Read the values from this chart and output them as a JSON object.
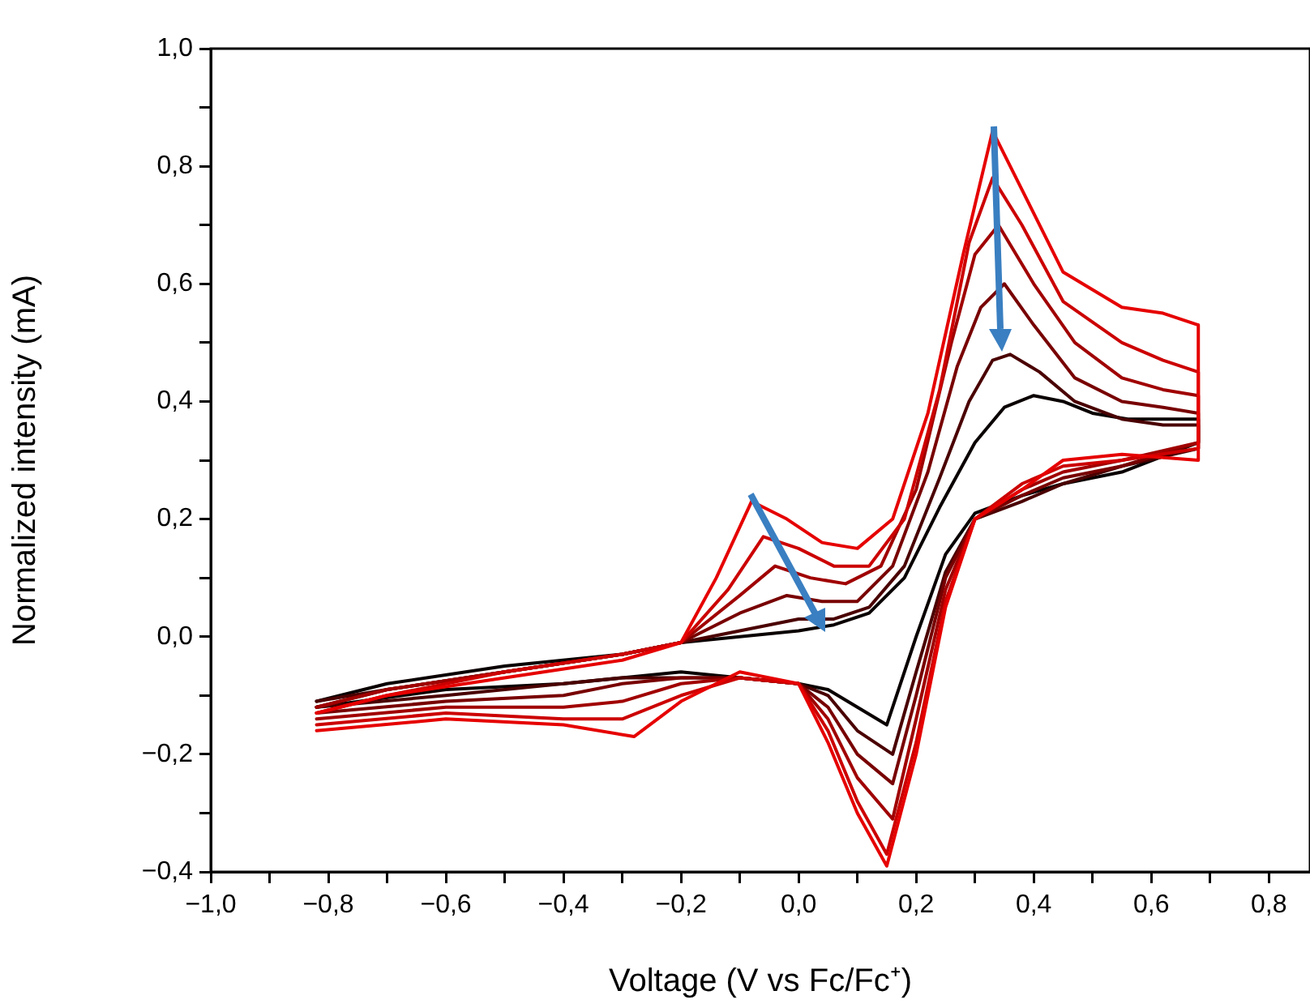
{
  "chart_data": {
    "type": "line",
    "xlabel": "Voltage (V vs Fc/Fc⁺)",
    "ylabel": "Normalized intensity (mA)",
    "xlim": [
      -1.0,
      0.87
    ],
    "ylim": [
      -0.4,
      1.0
    ],
    "xticks": [
      {
        "value": -1.0,
        "label": "−1,0"
      },
      {
        "value": -0.9,
        "label": null
      },
      {
        "value": -0.8,
        "label": "−0,8"
      },
      {
        "value": -0.7,
        "label": null
      },
      {
        "value": -0.6,
        "label": "−0,6"
      },
      {
        "value": -0.5,
        "label": null
      },
      {
        "value": -0.4,
        "label": "−0,4"
      },
      {
        "value": -0.3,
        "label": null
      },
      {
        "value": -0.2,
        "label": "−0,2"
      },
      {
        "value": -0.1,
        "label": null
      },
      {
        "value": 0.0,
        "label": "0,0"
      },
      {
        "value": 0.1,
        "label": null
      },
      {
        "value": 0.2,
        "label": "0,2"
      },
      {
        "value": 0.3,
        "label": null
      },
      {
        "value": 0.4,
        "label": "0,4"
      },
      {
        "value": 0.5,
        "label": null
      },
      {
        "value": 0.6,
        "label": "0,6"
      },
      {
        "value": 0.7,
        "label": null
      },
      {
        "value": 0.8,
        "label": "0,8"
      }
    ],
    "yticks": [
      {
        "value": -0.4,
        "label": "−0,4"
      },
      {
        "value": -0.3,
        "label": null
      },
      {
        "value": -0.2,
        "label": "−0,2"
      },
      {
        "value": -0.1,
        "label": null
      },
      {
        "value": 0.0,
        "label": "0,0"
      },
      {
        "value": 0.1,
        "label": null
      },
      {
        "value": 0.2,
        "label": "0,2"
      },
      {
        "value": 0.3,
        "label": null
      },
      {
        "value": 0.4,
        "label": "0,4"
      },
      {
        "value": 0.5,
        "label": null
      },
      {
        "value": 0.6,
        "label": "0,6"
      },
      {
        "value": 0.7,
        "label": null
      },
      {
        "value": 0.8,
        "label": "0,8"
      },
      {
        "value": 0.9,
        "label": null
      },
      {
        "value": 1.0,
        "label": "1,0"
      }
    ],
    "grid": false,
    "legend": false,
    "marker": "none",
    "line_style": "solid",
    "series": [
      {
        "color": "#e60000",
        "x": [
          -0.82,
          -0.7,
          -0.5,
          -0.3,
          -0.2,
          -0.14,
          -0.08,
          -0.02,
          0.04,
          0.1,
          0.16,
          0.22,
          0.28,
          0.33,
          0.38,
          0.45,
          0.55,
          0.62,
          0.68,
          0.68,
          0.55,
          0.45,
          0.38,
          0.3,
          0.25,
          0.2,
          0.15,
          0.1,
          0.05,
          0.0,
          -0.1,
          -0.2,
          -0.28,
          -0.4,
          -0.6,
          -0.82
        ],
        "values": [
          -0.13,
          -0.1,
          -0.07,
          -0.04,
          -0.01,
          0.1,
          0.23,
          0.2,
          0.16,
          0.15,
          0.2,
          0.38,
          0.65,
          0.86,
          0.76,
          0.62,
          0.56,
          0.55,
          0.53,
          0.3,
          0.31,
          0.3,
          0.25,
          0.2,
          0.05,
          -0.2,
          -0.39,
          -0.3,
          -0.18,
          -0.08,
          -0.06,
          -0.11,
          -0.17,
          -0.15,
          -0.14,
          -0.16
        ]
      },
      {
        "color": "#cc0000",
        "x": [
          -0.82,
          -0.7,
          -0.5,
          -0.3,
          -0.2,
          -0.12,
          -0.06,
          0.0,
          0.06,
          0.12,
          0.18,
          0.24,
          0.29,
          0.33,
          0.38,
          0.45,
          0.55,
          0.62,
          0.68,
          0.68,
          0.55,
          0.45,
          0.38,
          0.3,
          0.25,
          0.2,
          0.15,
          0.1,
          0.05,
          0.0,
          -0.1,
          -0.2,
          -0.3,
          -0.4,
          -0.6,
          -0.82
        ],
        "values": [
          -0.13,
          -0.1,
          -0.06,
          -0.03,
          -0.01,
          0.08,
          0.17,
          0.15,
          0.12,
          0.12,
          0.2,
          0.42,
          0.67,
          0.78,
          0.7,
          0.57,
          0.5,
          0.47,
          0.45,
          0.32,
          0.3,
          0.29,
          0.26,
          0.2,
          0.06,
          -0.18,
          -0.37,
          -0.28,
          -0.16,
          -0.08,
          -0.07,
          -0.1,
          -0.14,
          -0.14,
          -0.13,
          -0.15
        ]
      },
      {
        "color": "#a00000",
        "x": [
          -0.82,
          -0.7,
          -0.5,
          -0.3,
          -0.2,
          -0.1,
          -0.04,
          0.02,
          0.08,
          0.14,
          0.2,
          0.26,
          0.3,
          0.34,
          0.4,
          0.47,
          0.55,
          0.62,
          0.68,
          0.68,
          0.55,
          0.45,
          0.38,
          0.3,
          0.25,
          0.2,
          0.16,
          0.1,
          0.05,
          0.0,
          -0.1,
          -0.2,
          -0.3,
          -0.4,
          -0.6,
          -0.82
        ],
        "values": [
          -0.12,
          -0.09,
          -0.06,
          -0.03,
          -0.01,
          0.07,
          0.12,
          0.1,
          0.09,
          0.12,
          0.25,
          0.5,
          0.65,
          0.7,
          0.6,
          0.5,
          0.44,
          0.42,
          0.41,
          0.33,
          0.3,
          0.28,
          0.25,
          0.2,
          0.08,
          -0.14,
          -0.31,
          -0.24,
          -0.14,
          -0.08,
          -0.07,
          -0.08,
          -0.11,
          -0.12,
          -0.12,
          -0.14
        ]
      },
      {
        "color": "#780000",
        "x": [
          -0.82,
          -0.7,
          -0.5,
          -0.3,
          -0.2,
          -0.1,
          -0.02,
          0.04,
          0.1,
          0.16,
          0.22,
          0.27,
          0.31,
          0.35,
          0.4,
          0.47,
          0.55,
          0.62,
          0.68,
          0.68,
          0.55,
          0.45,
          0.38,
          0.3,
          0.25,
          0.2,
          0.16,
          0.1,
          0.05,
          0.0,
          -0.1,
          -0.2,
          -0.3,
          -0.4,
          -0.6,
          -0.82
        ],
        "values": [
          -0.12,
          -0.09,
          -0.06,
          -0.03,
          -0.01,
          0.04,
          0.07,
          0.06,
          0.06,
          0.12,
          0.28,
          0.46,
          0.56,
          0.6,
          0.53,
          0.44,
          0.4,
          0.39,
          0.38,
          0.33,
          0.29,
          0.27,
          0.24,
          0.2,
          0.1,
          -0.1,
          -0.25,
          -0.2,
          -0.12,
          -0.08,
          -0.07,
          -0.07,
          -0.08,
          -0.1,
          -0.11,
          -0.13
        ]
      },
      {
        "color": "#4a0000",
        "x": [
          -0.82,
          -0.7,
          -0.5,
          -0.3,
          -0.2,
          -0.1,
          0.0,
          0.06,
          0.12,
          0.18,
          0.24,
          0.29,
          0.33,
          0.36,
          0.41,
          0.47,
          0.55,
          0.62,
          0.68,
          0.68,
          0.55,
          0.45,
          0.38,
          0.3,
          0.25,
          0.2,
          0.16,
          0.1,
          0.05,
          0.0,
          -0.1,
          -0.2,
          -0.3,
          -0.4,
          -0.6,
          -0.82
        ],
        "values": [
          -0.11,
          -0.09,
          -0.06,
          -0.03,
          -0.01,
          0.01,
          0.03,
          0.03,
          0.05,
          0.12,
          0.27,
          0.4,
          0.47,
          0.48,
          0.45,
          0.4,
          0.37,
          0.36,
          0.36,
          0.32,
          0.29,
          0.26,
          0.23,
          0.2,
          0.11,
          -0.06,
          -0.2,
          -0.16,
          -0.1,
          -0.08,
          -0.07,
          -0.07,
          -0.07,
          -0.08,
          -0.1,
          -0.12
        ]
      },
      {
        "color": "#0a0000",
        "x": [
          -0.82,
          -0.7,
          -0.5,
          -0.3,
          -0.2,
          -0.1,
          0.0,
          0.06,
          0.12,
          0.18,
          0.24,
          0.3,
          0.35,
          0.4,
          0.45,
          0.5,
          0.56,
          0.62,
          0.68,
          0.68,
          0.55,
          0.45,
          0.38,
          0.3,
          0.25,
          0.2,
          0.15,
          0.1,
          0.05,
          0.0,
          -0.1,
          -0.2,
          -0.3,
          -0.4,
          -0.6,
          -0.82
        ],
        "values": [
          -0.11,
          -0.08,
          -0.05,
          -0.03,
          -0.01,
          0.0,
          0.01,
          0.02,
          0.04,
          0.1,
          0.22,
          0.33,
          0.39,
          0.41,
          0.4,
          0.38,
          0.37,
          0.37,
          0.37,
          0.33,
          0.28,
          0.26,
          0.24,
          0.21,
          0.14,
          0.0,
          -0.15,
          -0.12,
          -0.09,
          -0.08,
          -0.07,
          -0.06,
          -0.07,
          -0.08,
          -0.09,
          -0.12
        ]
      }
    ]
  }
}
